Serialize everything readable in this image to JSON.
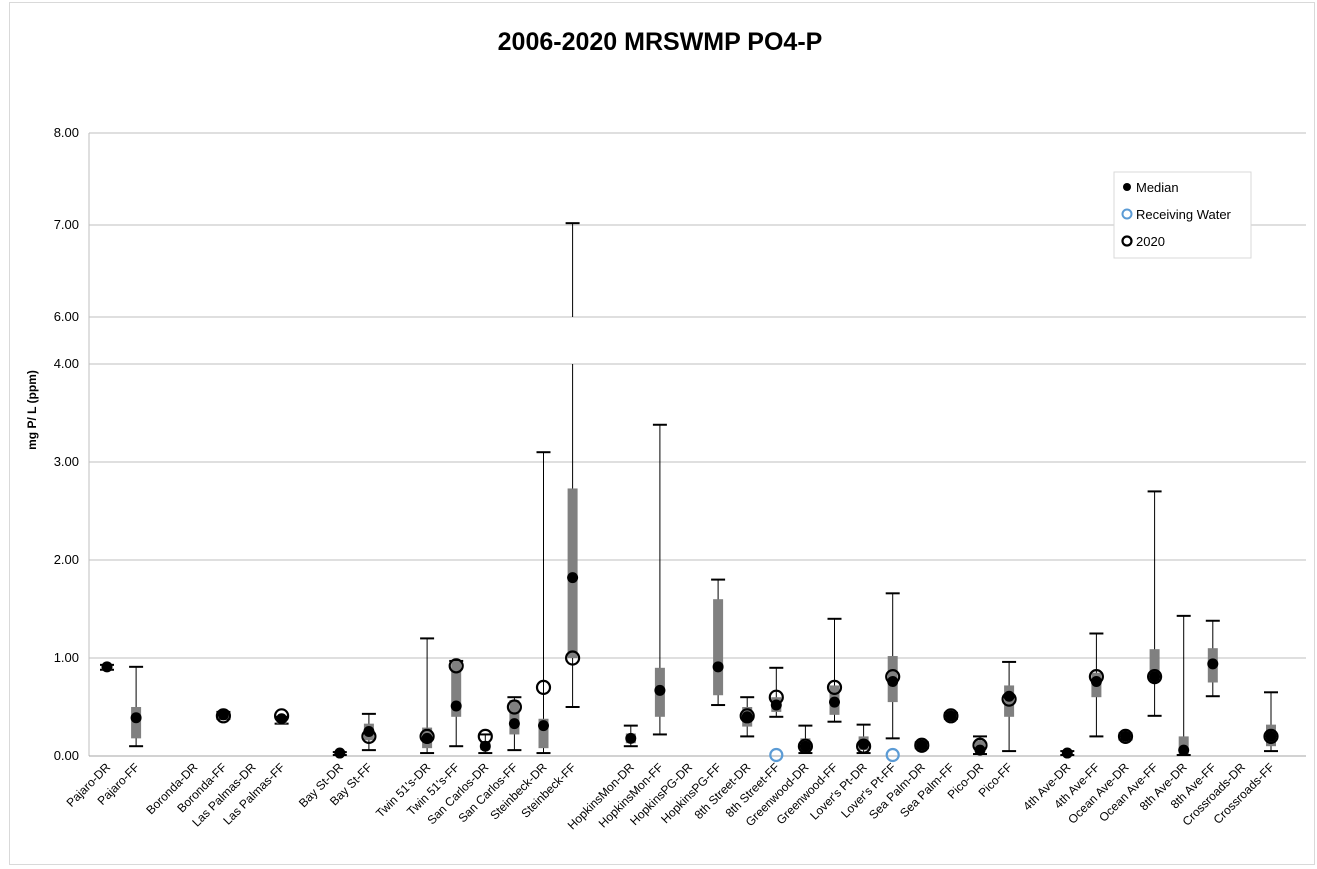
{
  "chart_data": {
    "type": "box",
    "title": "2006-2020 MRSWMP PO4-P",
    "ylabel": "mg P/ L (ppm)",
    "xlabel": "",
    "y_axis": {
      "broken": true,
      "lower_segment": [
        0,
        4
      ],
      "upper_segment": [
        6,
        8
      ],
      "tick_labels": [
        "0.00",
        "1.00",
        "2.00",
        "3.00",
        "4.00",
        "6.00",
        "7.00",
        "8.00"
      ]
    },
    "grid": true,
    "legend_position": "top-right",
    "legend": [
      {
        "key": "median",
        "label": "Median"
      },
      {
        "key": "receiving",
        "label": "Receiving Water"
      },
      {
        "key": "y2020",
        "label": "2020"
      }
    ],
    "colors": {
      "box": "#808080",
      "median": "#000000",
      "receiving": "#5b9bd5",
      "grid": "#bfbfbf"
    },
    "sites": [
      {
        "label": "Pajaro-DR",
        "min": 0.88,
        "q1": 0.88,
        "q3": 0.93,
        "max": 0.93,
        "median": 0.91,
        "y2020": null,
        "receiving": null
      },
      {
        "label": "Pajaro-FF",
        "min": 0.1,
        "q1": 0.18,
        "q3": 0.5,
        "max": 0.91,
        "median": 0.39,
        "y2020": null,
        "receiving": null
      },
      {
        "label": "",
        "min": null,
        "q1": null,
        "q3": null,
        "max": null,
        "median": null,
        "y2020": null,
        "receiving": null
      },
      {
        "label": "Boronda-DR",
        "min": null,
        "q1": null,
        "q3": null,
        "max": null,
        "median": null,
        "y2020": null,
        "receiving": null
      },
      {
        "label": "Boronda-FF",
        "min": 0.38,
        "q1": 0.38,
        "q3": 0.45,
        "max": 0.45,
        "median": 0.42,
        "y2020": 0.41,
        "receiving": null
      },
      {
        "label": "Las Palmas-DR",
        "min": null,
        "q1": null,
        "q3": null,
        "max": null,
        "median": null,
        "y2020": null,
        "receiving": null
      },
      {
        "label": "Las Palmas-FF",
        "min": 0.33,
        "q1": 0.33,
        "q3": 0.4,
        "max": 0.4,
        "median": 0.38,
        "y2020": 0.41,
        "receiving": null
      },
      {
        "label": "",
        "min": null,
        "q1": null,
        "q3": null,
        "max": null,
        "median": null,
        "y2020": null,
        "receiving": null
      },
      {
        "label": "Bay St-DR",
        "min": 0.01,
        "q1": 0.01,
        "q3": 0.04,
        "max": 0.04,
        "median": 0.03,
        "y2020": null,
        "receiving": null
      },
      {
        "label": "Bay St-FF",
        "min": 0.06,
        "q1": 0.16,
        "q3": 0.33,
        "max": 0.43,
        "median": 0.25,
        "y2020": 0.2,
        "receiving": null
      },
      {
        "label": "",
        "min": null,
        "q1": null,
        "q3": null,
        "max": null,
        "median": null,
        "y2020": null,
        "receiving": null
      },
      {
        "label": "Twin 51's-DR",
        "min": 0.03,
        "q1": 0.08,
        "q3": 0.29,
        "max": 1.2,
        "median": 0.18,
        "y2020": 0.2,
        "receiving": null
      },
      {
        "label": "Twin 51's-FF",
        "min": 0.1,
        "q1": 0.4,
        "q3": 0.97,
        "max": 0.97,
        "median": 0.51,
        "y2020": 0.92,
        "receiving": null
      },
      {
        "label": "San Carlos-DR",
        "min": 0.03,
        "q1": 0.06,
        "q3": 0.15,
        "max": 0.22,
        "median": 0.1,
        "y2020": 0.2,
        "receiving": null
      },
      {
        "label": "San Carlos-FF",
        "min": 0.06,
        "q1": 0.22,
        "q3": 0.57,
        "max": 0.6,
        "median": 0.33,
        "y2020": 0.5,
        "receiving": null
      },
      {
        "label": "Steinbeck-DR",
        "min": 0.03,
        "q1": 0.08,
        "q3": 0.38,
        "max": 3.1,
        "median": 0.31,
        "y2020": 0.7,
        "receiving": null
      },
      {
        "label": "Steinbeck-FF",
        "min": 0.5,
        "q1": 1.0,
        "q3": 2.73,
        "max": 7.02,
        "median": 1.82,
        "y2020": 1.0,
        "receiving": null
      },
      {
        "label": "",
        "min": null,
        "q1": null,
        "q3": null,
        "max": null,
        "median": null,
        "y2020": null,
        "receiving": null
      },
      {
        "label": "HopkinsMon-DR",
        "min": 0.1,
        "q1": 0.13,
        "q3": 0.23,
        "max": 0.31,
        "median": 0.18,
        "y2020": null,
        "receiving": null
      },
      {
        "label": "HopkinsMon-FF",
        "min": 0.22,
        "q1": 0.4,
        "q3": 0.9,
        "max": 3.38,
        "median": 0.67,
        "y2020": null,
        "receiving": null
      },
      {
        "label": "HopkinsPG-DR",
        "min": null,
        "q1": null,
        "q3": null,
        "max": null,
        "median": null,
        "y2020": null,
        "receiving": null
      },
      {
        "label": "HopkinsPG-FF",
        "min": 0.52,
        "q1": 0.62,
        "q3": 1.6,
        "max": 1.8,
        "median": 0.91,
        "y2020": null,
        "receiving": null
      },
      {
        "label": "8th Street-DR",
        "min": 0.2,
        "q1": 0.3,
        "q3": 0.5,
        "max": 0.6,
        "median": 0.4,
        "y2020": 0.41,
        "receiving": null
      },
      {
        "label": "8th Street-FF",
        "min": 0.4,
        "q1": 0.45,
        "q3": 0.6,
        "max": 0.9,
        "median": 0.52,
        "y2020": 0.6,
        "receiving": 0.01
      },
      {
        "label": "Greenwood-DR",
        "min": 0.03,
        "q1": 0.06,
        "q3": 0.18,
        "max": 0.31,
        "median": 0.1,
        "y2020": 0.1,
        "receiving": null
      },
      {
        "label": "Greenwood-FF",
        "min": 0.35,
        "q1": 0.42,
        "q3": 0.72,
        "max": 1.4,
        "median": 0.55,
        "y2020": 0.7,
        "receiving": null
      },
      {
        "label": "Lover's Pt-DR",
        "min": 0.03,
        "q1": 0.06,
        "q3": 0.2,
        "max": 0.32,
        "median": 0.12,
        "y2020": 0.1,
        "receiving": null
      },
      {
        "label": "Lover's Pt-FF",
        "min": 0.18,
        "q1": 0.55,
        "q3": 1.02,
        "max": 1.66,
        "median": 0.76,
        "y2020": 0.81,
        "receiving": 0.01
      },
      {
        "label": "Sea Palm-DR",
        "min": 0.08,
        "q1": 0.08,
        "q3": 0.14,
        "max": 0.14,
        "median": 0.11,
        "y2020": 0.11,
        "receiving": null
      },
      {
        "label": "Sea Palm-FF",
        "min": 0.38,
        "q1": 0.38,
        "q3": 0.44,
        "max": 0.44,
        "median": 0.41,
        "y2020": 0.41,
        "receiving": null
      },
      {
        "label": "Pico-DR",
        "min": 0.02,
        "q1": 0.04,
        "q3": 0.16,
        "max": 0.2,
        "median": 0.06,
        "y2020": 0.11,
        "receiving": null
      },
      {
        "label": "Pico-FF",
        "min": 0.05,
        "q1": 0.4,
        "q3": 0.72,
        "max": 0.96,
        "median": 0.61,
        "y2020": 0.58,
        "receiving": null
      },
      {
        "label": "",
        "min": null,
        "q1": null,
        "q3": null,
        "max": null,
        "median": null,
        "y2020": null,
        "receiving": null
      },
      {
        "label": "4th Ave-DR",
        "min": 0.01,
        "q1": 0.01,
        "q3": 0.05,
        "max": 0.05,
        "median": 0.03,
        "y2020": null,
        "receiving": null
      },
      {
        "label": "4th Ave-FF",
        "min": 0.2,
        "q1": 0.6,
        "q3": 0.85,
        "max": 1.25,
        "median": 0.76,
        "y2020": 0.81,
        "receiving": null
      },
      {
        "label": "Ocean Ave-DR",
        "min": 0.17,
        "q1": 0.17,
        "q3": 0.23,
        "max": 0.23,
        "median": 0.2,
        "y2020": 0.2,
        "receiving": null
      },
      {
        "label": "Ocean Ave-FF",
        "min": 0.41,
        "q1": 0.75,
        "q3": 1.09,
        "max": 2.7,
        "median": 0.81,
        "y2020": 0.81,
        "receiving": null
      },
      {
        "label": "8th Ave-DR",
        "min": 0.01,
        "q1": 0.02,
        "q3": 0.2,
        "max": 1.43,
        "median": 0.06,
        "y2020": null,
        "receiving": null
      },
      {
        "label": "8th Ave-FF",
        "min": 0.61,
        "q1": 0.75,
        "q3": 1.1,
        "max": 1.38,
        "median": 0.94,
        "y2020": null,
        "receiving": null
      },
      {
        "label": "Crossroads-DR",
        "min": null,
        "q1": null,
        "q3": null,
        "max": null,
        "median": null,
        "y2020": null,
        "receiving": null
      },
      {
        "label": "Crossroads-FF",
        "min": 0.05,
        "q1": 0.1,
        "q3": 0.32,
        "max": 0.65,
        "median": 0.2,
        "y2020": 0.2,
        "receiving": null
      }
    ]
  }
}
